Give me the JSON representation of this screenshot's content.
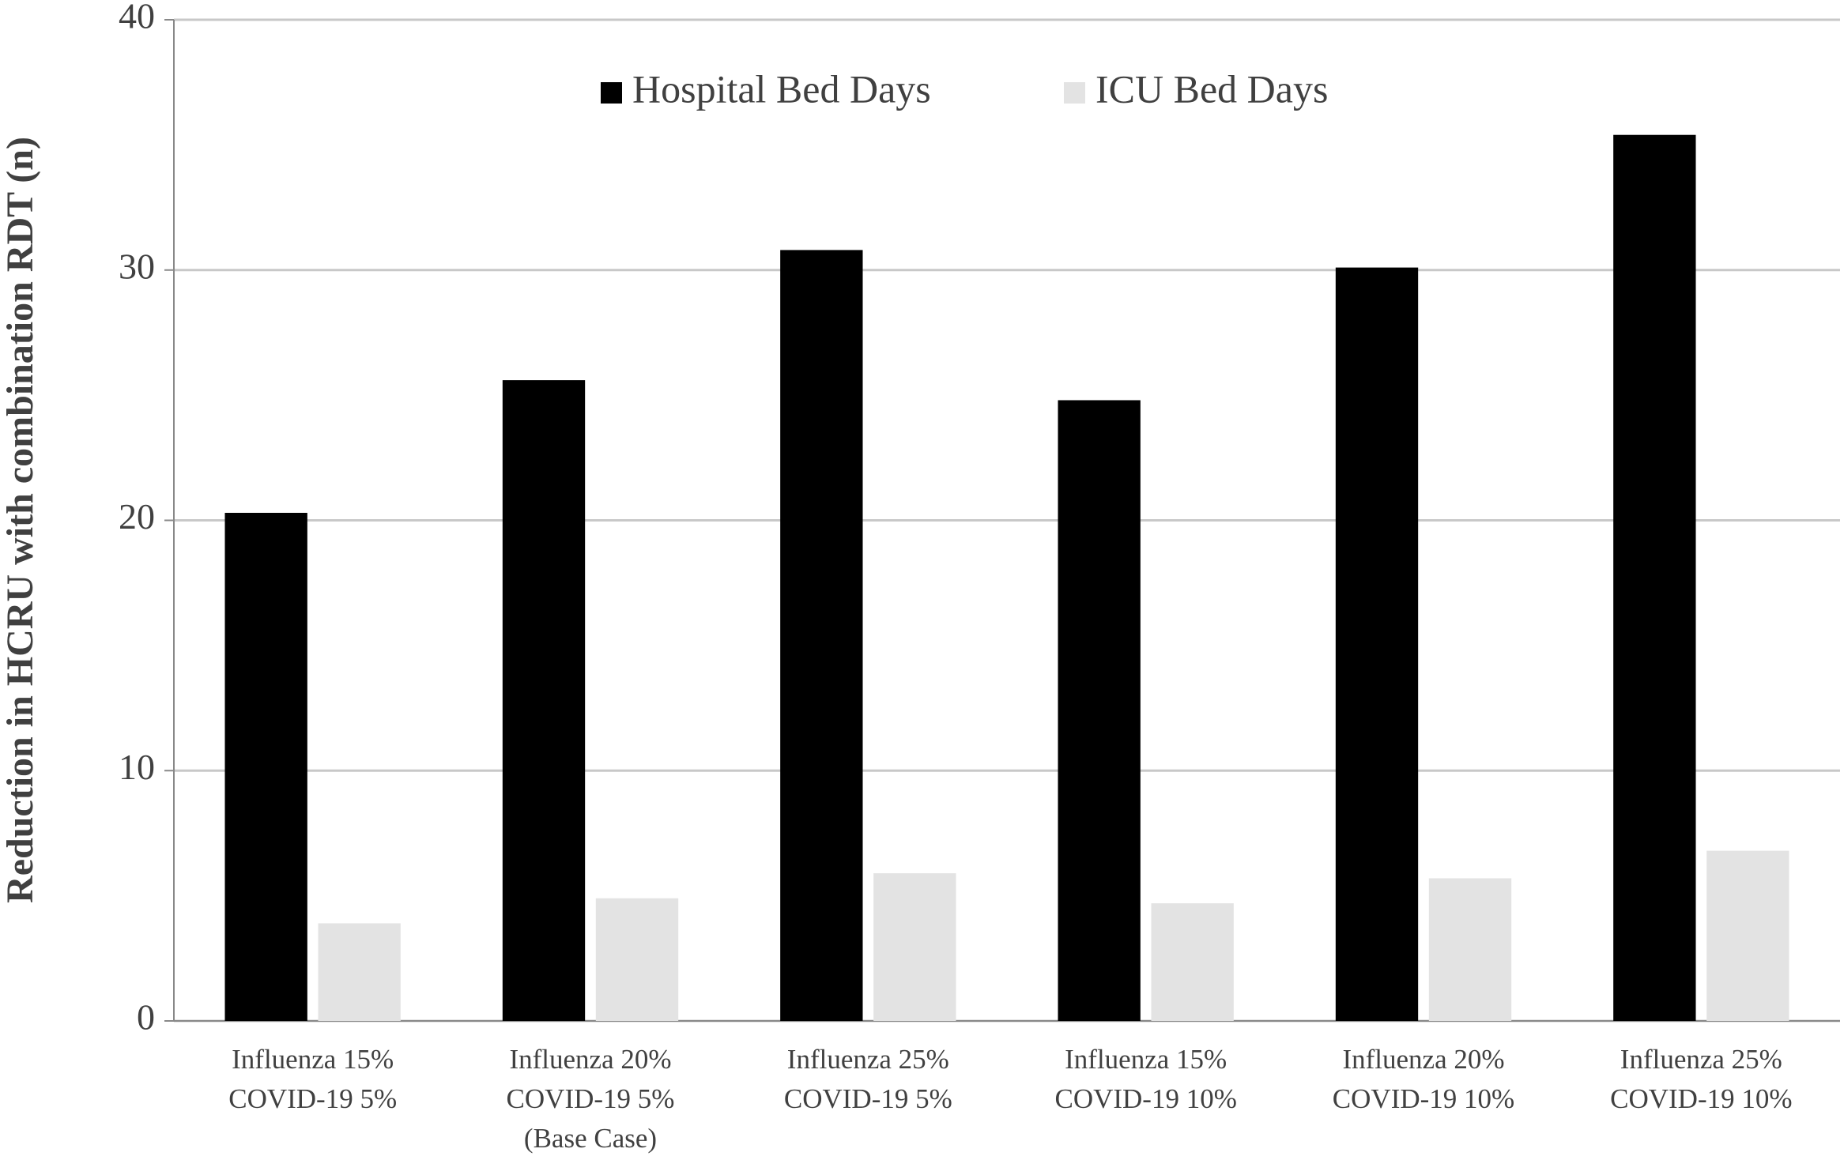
{
  "chart_data": {
    "type": "bar",
    "y_label": "Reduction in HCRU with combination RDT (n)",
    "categories": [
      [
        "Influenza 15%",
        "COVID-19 5%"
      ],
      [
        "Influenza 20%",
        "COVID-19 5%",
        "(Base Case)"
      ],
      [
        "Influenza 25%",
        "COVID-19 5%"
      ],
      [
        "Influenza 15%",
        "COVID-19 10%"
      ],
      [
        "Influenza 20%",
        "COVID-19 10%"
      ],
      [
        "Influenza 25%",
        "COVID-19 10%"
      ]
    ],
    "series": [
      {
        "name": "Hospital Bed Days",
        "color": "#000000",
        "values": [
          20.3,
          25.6,
          30.8,
          24.8,
          30.1,
          35.4
        ]
      },
      {
        "name": "ICU Bed Days",
        "color": "#e3e3e3",
        "values": [
          3.9,
          4.9,
          5.9,
          4.7,
          5.7,
          6.8
        ]
      }
    ],
    "ylim": [
      0,
      40
    ],
    "yticks": [
      0,
      10,
      20,
      30,
      40
    ],
    "grid": true,
    "legend": "top"
  }
}
